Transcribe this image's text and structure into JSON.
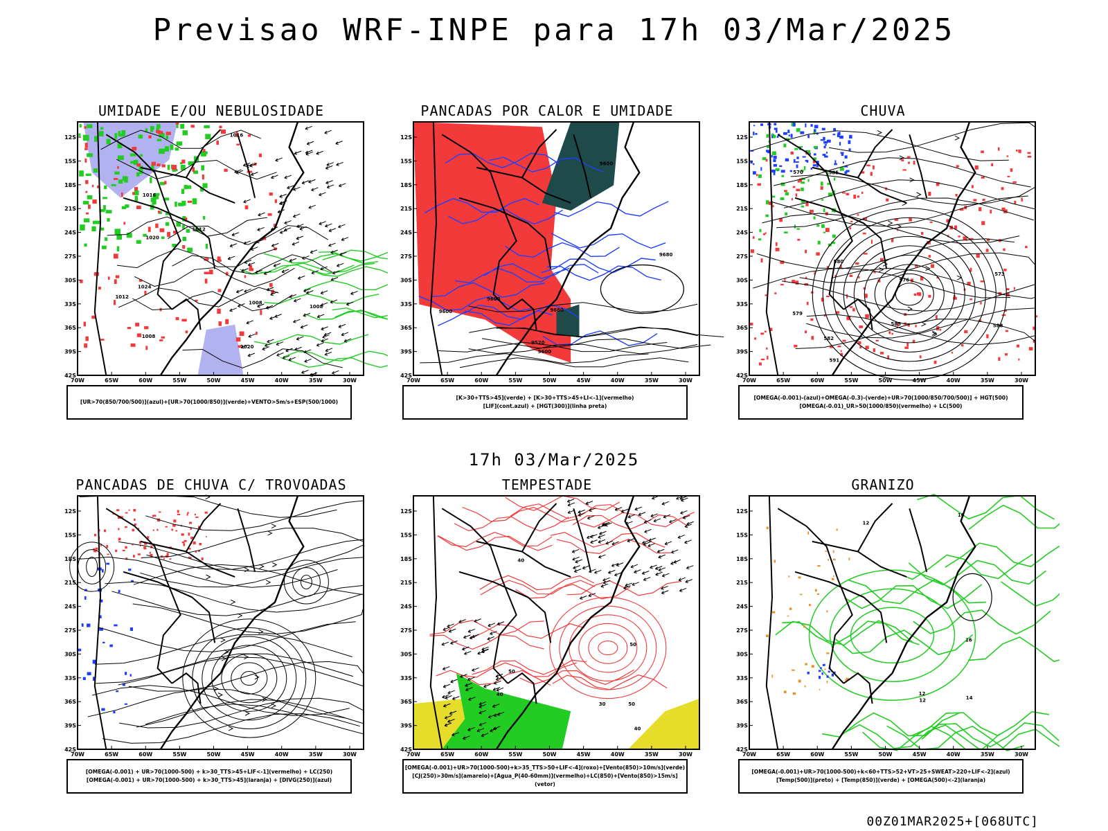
{
  "header": {
    "title": "Previsao WRF-INPE  para 17h 03/Mar/2025"
  },
  "row2_title": "17h 03/Mar/2025",
  "footer": "00Z01MAR2025+[068UTC]",
  "axes": {
    "lat_labels": [
      "12S",
      "15S",
      "18S",
      "21S",
      "24S",
      "27S",
      "30S",
      "33S",
      "36S",
      "39S",
      "42S"
    ],
    "lon_labels": [
      "70W",
      "65W",
      "60W",
      "55W",
      "50W",
      "45W",
      "40W",
      "35W",
      "30W"
    ]
  },
  "colors": {
    "blue": "#1f3fff",
    "green": "#22cc22",
    "red": "#f23a3a",
    "dark_teal": "#1e4a4a",
    "lavender": "#aaaaee",
    "yellow": "#e6dc2a",
    "orange": "#e8902a",
    "purple": "#a020c0"
  },
  "panels": [
    {
      "title": "UMIDADE E/OU NEBULOSIDADE",
      "legend": [
        "[UR>70(850/700/500)](azul)+[UR>70(1000/850)](verde)+VENTO>5m/s+ESP(500/1000)"
      ],
      "contour_labels": [
        "1008",
        "1008",
        "1012",
        "1016",
        "1020",
        "1008",
        "1012",
        "1016",
        "1020",
        "1024"
      ]
    },
    {
      "title": "PANCADAS POR CALOR E UMIDADE",
      "legend": [
        "[K>30+TTS>45](verde) + [K>30+TTS>45+LI<-1](vermelho)",
        "[LIF](cont.azul) + [HGT(300)](linha preta)"
      ],
      "contour_labels": [
        "9600",
        "9600",
        "9600",
        "9600",
        "9520",
        "9680",
        "9680"
      ]
    },
    {
      "title": "CHUVA",
      "legend": [
        "[OMEGA(-0.001)-(azul)+OMEGA(-0.3)-(verde)+UR>70(1000/850/700/500)] + HGT(500)",
        "[OMEGA(-0.01)_UR>50(1000/850)(vermelho) + LC(500)"
      ],
      "contour_labels": [
        "580",
        "585",
        "588",
        "591",
        "582",
        "579",
        "576",
        "573",
        "570",
        "585"
      ]
    },
    {
      "title": "PANCADAS DE CHUVA C/ TROVOADAS",
      "legend": [
        "[OMEGA(-0.001) + UR>70(1000-500) + k>30_TTS>45+LIF<-1](vermelho) + LC(250)",
        "[OMEGA(-0.001) + UR>70(1000-500) + k>30_TTS>45](laranja) + [DIVG(250)](azul)"
      ],
      "contour_labels": []
    },
    {
      "title": "TEMPESTADE",
      "legend": [
        "[OMEGA(-0.001)+UR>70(1000-500)+k>35_TTS>50+LIF<-4](roxo)+[Vento(850)>10m/s](verde)",
        "[CJ(250)>30m/s](amarelo)+[Agua_P(40-60mm)](vermelho)+LC(850)+[Vento(850)>15m/s](vetor)"
      ],
      "contour_labels": [
        "40",
        "50",
        "40",
        "50",
        "50",
        "40",
        "30"
      ]
    },
    {
      "title": "GRANIZO",
      "legend": [
        "[OMEGA(-0.001)+UR>70(1000-500)+k<60+TTS>52+VT>25+SWEAT>220+LIF<-2](azul)",
        "[Temp(500)](preto) + [Temp(850)](verde) + [OMEGA(500)<-2](laranja)"
      ],
      "contour_labels": [
        "12",
        "12",
        "16",
        "16",
        "12",
        "14"
      ]
    }
  ]
}
